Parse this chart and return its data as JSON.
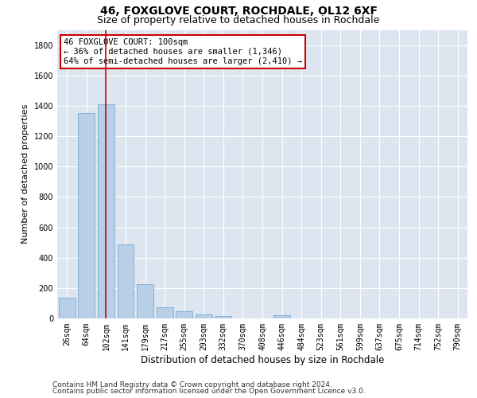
{
  "title1": "46, FOXGLOVE COURT, ROCHDALE, OL12 6XF",
  "title2": "Size of property relative to detached houses in Rochdale",
  "xlabel": "Distribution of detached houses by size in Rochdale",
  "ylabel": "Number of detached properties",
  "categories": [
    "26sqm",
    "64sqm",
    "102sqm",
    "141sqm",
    "179sqm",
    "217sqm",
    "255sqm",
    "293sqm",
    "332sqm",
    "370sqm",
    "408sqm",
    "446sqm",
    "484sqm",
    "523sqm",
    "561sqm",
    "599sqm",
    "637sqm",
    "675sqm",
    "714sqm",
    "752sqm",
    "790sqm"
  ],
  "values": [
    135,
    1350,
    1410,
    490,
    225,
    75,
    45,
    28,
    15,
    0,
    0,
    20,
    0,
    0,
    0,
    0,
    0,
    0,
    0,
    0,
    0
  ],
  "bar_color": "#b8cfe8",
  "bar_edge_color": "#7aaad0",
  "highlight_index": 2,
  "highlight_line_color": "#cc0000",
  "annotation_line1": "46 FOXGLOVE COURT: 100sqm",
  "annotation_line2": "← 36% of detached houses are smaller (1,346)",
  "annotation_line3": "64% of semi-detached houses are larger (2,410) →",
  "annotation_box_color": "#cc0000",
  "ylim": [
    0,
    1900
  ],
  "yticks": [
    0,
    200,
    400,
    600,
    800,
    1000,
    1200,
    1400,
    1600,
    1800
  ],
  "background_color": "#dde6f0",
  "grid_color": "#ffffff",
  "footer1": "Contains HM Land Registry data © Crown copyright and database right 2024.",
  "footer2": "Contains public sector information licensed under the Open Government Licence v3.0.",
  "title1_fontsize": 10,
  "title2_fontsize": 9,
  "xlabel_fontsize": 8.5,
  "ylabel_fontsize": 8,
  "tick_fontsize": 7,
  "footer_fontsize": 6.5,
  "annotation_fontsize": 7.5
}
